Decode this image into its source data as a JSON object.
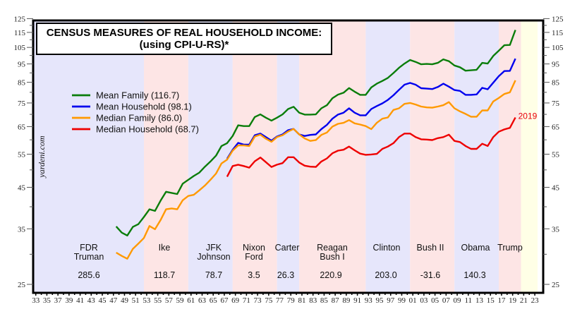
{
  "chart_data": {
    "type": "line",
    "title": "CENSUS MEASURES OF REAL HOUSEHOLD INCOME:",
    "subtitle": "(using CPI-U-RS)*",
    "xlabel": "",
    "ylabel": "",
    "y_scale": "log",
    "ylim": [
      25,
      125
    ],
    "y_ticks": [
      25,
      35,
      45,
      55,
      65,
      75,
      85,
      95,
      105,
      115,
      125
    ],
    "y_minor_ticks": [
      30,
      40,
      50,
      60,
      70,
      80,
      90,
      100,
      110,
      120
    ],
    "xlim": [
      1933,
      2024
    ],
    "x_tick_labels": [
      "33",
      "35",
      "37",
      "39",
      "41",
      "43",
      "45",
      "47",
      "49",
      "51",
      "53",
      "55",
      "57",
      "59",
      "61",
      "63",
      "65",
      "67",
      "69",
      "71",
      "73",
      "75",
      "77",
      "79",
      "81",
      "83",
      "85",
      "87",
      "89",
      "91",
      "93",
      "95",
      "97",
      "99",
      "01",
      "03",
      "05",
      "07",
      "09",
      "11",
      "13",
      "15",
      "17",
      "19",
      "21",
      "23"
    ],
    "grid": false,
    "legend_position": "top-left",
    "watermark": "yardeni.com",
    "end_annotation": {
      "text": "2019",
      "series": "Median Household",
      "color": "#e8000b"
    },
    "series": [
      {
        "name": "Mean Family",
        "legend": "Mean Family (116.7)",
        "color": "#0a7d0a",
        "start_year": 1947,
        "values": [
          35.5,
          34.2,
          33.6,
          35.4,
          36.0,
          37.6,
          39.4,
          39.0,
          41.5,
          43.8,
          43.5,
          43.2,
          46.0,
          47.1,
          48.2,
          49.2,
          51.0,
          52.6,
          54.5,
          57.8,
          58.8,
          61.4,
          65.5,
          65.2,
          65.2,
          68.9,
          70.0,
          68.6,
          67.4,
          68.6,
          70.0,
          72.3,
          73.3,
          70.7,
          69.9,
          69.9,
          70.0,
          72.6,
          74.0,
          77.2,
          78.9,
          79.8,
          82.1,
          80.3,
          78.8,
          78.8,
          82.4,
          84.3,
          85.7,
          87.3,
          89.9,
          92.8,
          95.2,
          97.3,
          96.2,
          94.8,
          95.0,
          94.8,
          95.6,
          97.7,
          96.6,
          94.1,
          93.1,
          91.2,
          91.4,
          91.7,
          95.6,
          95.2,
          99.7,
          102.9,
          106.4,
          106.6,
          116.7
        ]
      },
      {
        "name": "Mean Household",
        "legend": "Mean Household (98.1)",
        "color": "#0000ee",
        "start_year": 1967,
        "values": [
          53.5,
          56.5,
          58.9,
          58.3,
          58.3,
          61.7,
          62.3,
          61.0,
          59.7,
          61.2,
          62.0,
          63.6,
          64.1,
          62.0,
          61.4,
          61.8,
          62.0,
          64.0,
          65.7,
          68.2,
          69.9,
          70.7,
          72.6,
          70.7,
          69.6,
          69.6,
          72.3,
          73.6,
          74.8,
          76.4,
          78.6,
          81.2,
          83.8,
          84.7,
          83.8,
          82.0,
          81.8,
          81.6,
          82.6,
          84.3,
          82.8,
          81.1,
          80.7,
          78.8,
          78.8,
          79.0,
          82.2,
          81.5,
          84.8,
          88.2,
          91.0,
          91.1,
          98.1
        ]
      },
      {
        "name": "Median Family",
        "legend": "Median Family (86.0)",
        "color": "#ff9900",
        "start_year": 1947,
        "values": [
          30.3,
          29.7,
          29.2,
          31.0,
          32.0,
          33.1,
          35.6,
          34.9,
          36.9,
          39.4,
          39.6,
          39.4,
          41.6,
          42.7,
          43.0,
          44.2,
          45.5,
          47.1,
          48.9,
          52.0,
          53.2,
          56.2,
          58.0,
          58.0,
          57.8,
          61.2,
          61.9,
          60.4,
          59.3,
          61.0,
          61.7,
          63.1,
          64.1,
          62.0,
          60.5,
          59.6,
          59.9,
          61.8,
          62.7,
          65.0,
          66.1,
          66.5,
          67.6,
          66.3,
          65.8,
          65.2,
          64.0,
          66.5,
          68.2,
          68.7,
          71.9,
          72.6,
          74.6,
          75.0,
          74.3,
          73.4,
          73.0,
          72.9,
          73.4,
          74.0,
          75.4,
          72.6,
          71.3,
          70.2,
          69.0,
          69.0,
          71.7,
          71.7,
          75.7,
          77.3,
          79.2,
          80.0,
          86.0
        ]
      },
      {
        "name": "Median Household",
        "legend": "Median Household (68.7)",
        "color": "#ee0000",
        "start_year": 1967,
        "values": [
          48.0,
          51.2,
          51.6,
          51.2,
          50.7,
          52.7,
          53.9,
          52.4,
          50.9,
          51.6,
          52.1,
          54.0,
          54.0,
          52.3,
          51.3,
          51.0,
          50.9,
          52.6,
          53.6,
          55.3,
          56.2,
          56.5,
          57.6,
          56.3,
          55.2,
          54.8,
          54.9,
          55.1,
          56.8,
          57.6,
          58.8,
          61.0,
          62.3,
          62.3,
          61.0,
          60.2,
          60.1,
          59.9,
          60.6,
          61.0,
          61.9,
          59.6,
          59.2,
          57.8,
          56.8,
          56.8,
          58.6,
          57.8,
          61.0,
          63.0,
          63.9,
          64.5,
          68.7
        ]
      }
    ],
    "presidential_terms": [
      {
        "lines": [
          "FDR",
          "Truman"
        ],
        "value": "285.6",
        "start": 1933,
        "end": 1953,
        "party": "D"
      },
      {
        "lines": [
          "Ike"
        ],
        "value": "118.7",
        "start": 1953,
        "end": 1961,
        "party": "R"
      },
      {
        "lines": [
          "JFK",
          "Johnson"
        ],
        "value": "78.7",
        "start": 1961,
        "end": 1969,
        "party": "D"
      },
      {
        "lines": [
          "Nixon",
          "Ford"
        ],
        "value": "3.5",
        "start": 1969,
        "end": 1977,
        "party": "R"
      },
      {
        "lines": [
          "Carter"
        ],
        "value": "26.3",
        "start": 1977,
        "end": 1981,
        "party": "D"
      },
      {
        "lines": [
          "Reagan",
          "Bush I"
        ],
        "value": "220.9",
        "start": 1981,
        "end": 1993,
        "party": "R"
      },
      {
        "lines": [
          "Clinton"
        ],
        "value": "203.0",
        "start": 1993,
        "end": 2001,
        "party": "D"
      },
      {
        "lines": [
          "Bush II"
        ],
        "value": "-31.6",
        "start": 2001,
        "end": 2009,
        "party": "R"
      },
      {
        "lines": [
          "Obama"
        ],
        "value": "140.3",
        "start": 2009,
        "end": 2017,
        "party": "D"
      },
      {
        "lines": [
          "Trump"
        ],
        "value": "",
        "start": 2017,
        "end": 2021,
        "party": "R"
      },
      {
        "lines": [],
        "value": "",
        "start": 2021,
        "end": 2024,
        "party": "future"
      }
    ],
    "band_colors": {
      "D": "#e6e6fb",
      "R": "#fde5e5",
      "future": "#ffffe6"
    }
  }
}
